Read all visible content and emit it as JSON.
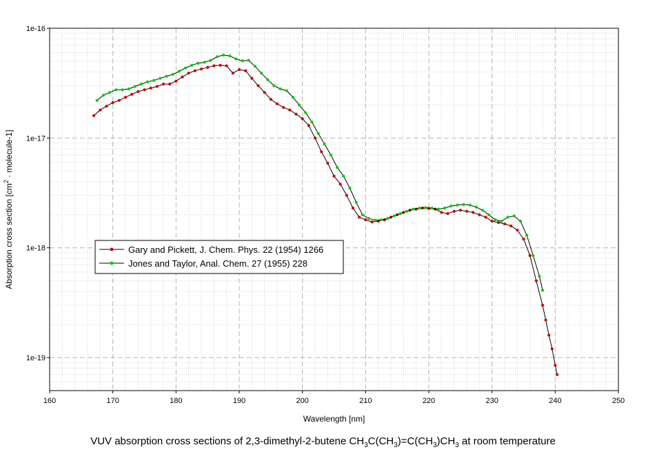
{
  "caption": {
    "prefix": "VUV absorption cross sections of 2,3-dimethyl-2-butene CH",
    "parts": [
      {
        "t": "CH",
        "sub": "3"
      },
      {
        "t": "C(CH",
        "sub": "3"
      },
      {
        "t": ")=C(CH",
        "sub": "3"
      },
      {
        "t": ")CH",
        "sub": "3"
      },
      {
        "t": " at room temperature",
        "sub": ""
      }
    ]
  },
  "chart_data": {
    "type": "line",
    "title": "VUV absorption cross sections of 2,3-dimethyl-2-butene CH3C(CH3)=C(CH3)CH3 at room temperature",
    "xlabel": "Wavelength [nm]",
    "ylabel": "Absorption cross section [cm2 · molecule-1]",
    "ylabel_parts": {
      "pre": "Absorption cross section [cm",
      "sup": "2",
      "post": " · molecule-1]"
    },
    "xlim": [
      160,
      250
    ],
    "ylim": [
      5e-20,
      1e-16
    ],
    "y_scale": "log",
    "grid": true,
    "legend_position": "center-left",
    "x_ticks": [
      "160",
      "170",
      "180",
      "190",
      "200",
      "210",
      "220",
      "230",
      "240",
      "250"
    ],
    "x_tick_values": [
      160,
      170,
      180,
      190,
      200,
      210,
      220,
      230,
      240,
      250
    ],
    "y_ticks": [
      "1e-19",
      "1e-18",
      "1e-17",
      "1e-16"
    ],
    "y_tick_values": [
      1e-19,
      1e-18,
      1e-17,
      1e-16
    ],
    "series": [
      {
        "name": "Gary and Pickett, J. Chem. Phys. 22 (1954) 1266",
        "color": "#cc0000",
        "x": [
          167,
          168,
          169,
          170,
          171,
          172,
          173,
          174,
          175,
          176,
          177,
          178,
          179,
          180,
          181,
          182,
          183,
          184,
          185,
          186,
          187,
          188,
          189,
          190,
          191,
          192,
          193,
          194,
          195,
          196,
          197,
          198,
          199,
          200,
          201,
          202,
          203,
          204,
          205,
          206,
          207,
          208,
          209,
          210,
          211,
          212,
          213,
          214,
          215,
          216,
          217,
          218,
          219,
          220,
          221,
          222,
          223,
          224,
          225,
          226,
          227,
          228,
          229,
          230,
          231,
          232,
          233,
          234,
          235,
          236,
          237,
          238,
          238.5,
          239,
          239.5,
          240,
          240.3
        ],
        "y": [
          1.6e-17,
          1.8e-17,
          1.95e-17,
          2.1e-17,
          2.2e-17,
          2.35e-17,
          2.5e-17,
          2.65e-17,
          2.75e-17,
          2.85e-17,
          2.95e-17,
          3.1e-17,
          3.1e-17,
          3.3e-17,
          3.6e-17,
          3.9e-17,
          4.1e-17,
          4.25e-17,
          4.4e-17,
          4.55e-17,
          4.6e-17,
          4.55e-17,
          3.9e-17,
          4.2e-17,
          4.1e-17,
          3.5e-17,
          3e-17,
          2.6e-17,
          2.25e-17,
          2.05e-17,
          1.9e-17,
          1.8e-17,
          1.65e-17,
          1.5e-17,
          1.3e-17,
          1e-17,
          7.5e-18,
          5.9e-18,
          4.5e-18,
          3.8e-18,
          3e-18,
          2.3e-18,
          1.9e-18,
          1.8e-18,
          1.72e-18,
          1.75e-18,
          1.8e-18,
          1.9e-18,
          2e-18,
          2.1e-18,
          2.2e-18,
          2.25e-18,
          2.3e-18,
          2.28e-18,
          2.25e-18,
          2.1e-18,
          2.05e-18,
          2.15e-18,
          2.2e-18,
          2.15e-18,
          2.1e-18,
          2e-18,
          1.9e-18,
          1.75e-18,
          1.7e-18,
          1.65e-18,
          1.58e-18,
          1.45e-18,
          1.2e-18,
          8.5e-19,
          5e-19,
          3e-19,
          2.2e-19,
          1.6e-19,
          1.2e-19,
          8.5e-20,
          7e-20
        ]
      },
      {
        "name": "Jones and Taylor, Anal. Chem. 27 (1955) 228",
        "color": "#00cc00",
        "x": [
          167.5,
          168.5,
          169.5,
          170.5,
          171.5,
          172.5,
          173.5,
          174.5,
          175.5,
          176.5,
          177.5,
          178.5,
          179.5,
          180.5,
          181.5,
          182.5,
          183.5,
          184.5,
          185.5,
          186.5,
          187.5,
          188.5,
          189.5,
          190.5,
          191.5,
          192.5,
          193.5,
          194.5,
          195.5,
          196.5,
          197.5,
          198.5,
          199.5,
          200.5,
          201.5,
          202.5,
          203.5,
          204.5,
          205.5,
          206.5,
          207.5,
          208.5,
          209.5,
          210.5,
          211.5,
          212.5,
          213.5,
          214.5,
          215.5,
          216.5,
          217.5,
          218.5,
          219.5,
          220.5,
          221.5,
          222.5,
          223.5,
          224.5,
          225.5,
          226.5,
          227.5,
          228.5,
          229.5,
          230.5,
          231.5,
          232.5,
          233.5,
          234.5,
          235.5,
          236.5,
          237.5,
          238.0
        ],
        "y": [
          2.2e-17,
          2.45e-17,
          2.6e-17,
          2.75e-17,
          2.75e-17,
          2.8e-17,
          2.95e-17,
          3.1e-17,
          3.25e-17,
          3.35e-17,
          3.5e-17,
          3.65e-17,
          3.8e-17,
          4.05e-17,
          4.35e-17,
          4.6e-17,
          4.8e-17,
          4.9e-17,
          5.1e-17,
          5.5e-17,
          5.7e-17,
          5.6e-17,
          5.25e-17,
          5.05e-17,
          5.1e-17,
          4.5e-17,
          3.9e-17,
          3.4e-17,
          3e-17,
          2.8e-17,
          2.7e-17,
          2.35e-17,
          2e-17,
          1.7e-17,
          1.4e-17,
          1.1e-17,
          8.8e-18,
          7e-18,
          5.4e-18,
          4.5e-18,
          3.5e-18,
          2.6e-18,
          2e-18,
          1.85e-18,
          1.78e-18,
          1.8e-18,
          1.85e-18,
          1.95e-18,
          2.05e-18,
          2.15e-18,
          2.25e-18,
          2.3e-18,
          2.32e-18,
          2.3e-18,
          2.25e-18,
          2.3e-18,
          2.4e-18,
          2.45e-18,
          2.48e-18,
          2.45e-18,
          2.35e-18,
          2.2e-18,
          2e-18,
          1.8e-18,
          1.75e-18,
          1.9e-18,
          1.95e-18,
          1.75e-18,
          1.3e-18,
          8.5e-19,
          5.5e-19,
          4.1e-19
        ]
      }
    ]
  }
}
